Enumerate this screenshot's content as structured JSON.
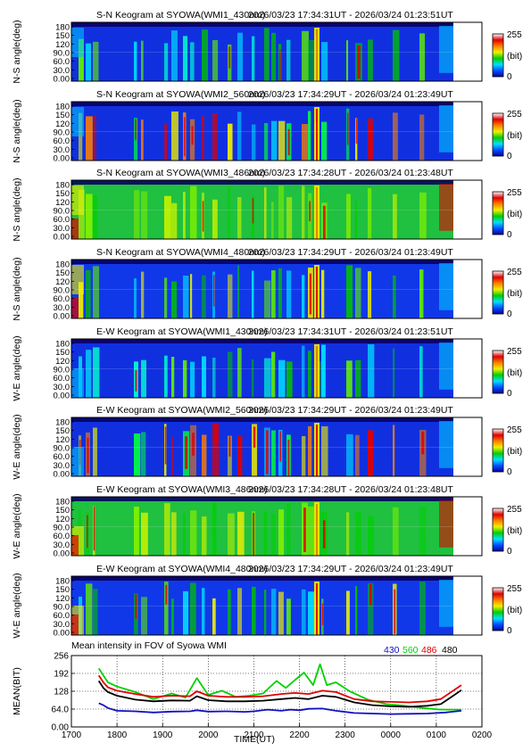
{
  "colorbar": {
    "max_label": "255",
    "unit_label": "(bit)",
    "min_label": "0",
    "stops": [
      "#0a00a0",
      "#0050ff",
      "#00e0ff",
      "#00d000",
      "#f0f000",
      "#ff8000",
      "#e00000",
      "#ffffff"
    ]
  },
  "keograms": [
    {
      "title": "S-N Keogram at SYOWA(WMI1_430nm)",
      "time": "2026/03/23 17:34:31UT - 2026/03/24 01:23:51UT",
      "ylabel": "N-S angle(deg)",
      "yticks": [
        "180",
        "150",
        "120",
        "90.0",
        "60.0",
        "30.0",
        "0.00"
      ],
      "style": "weak"
    },
    {
      "title": "S-N Keogram at SYOWA(WMI2_560nm)",
      "time": "2026/03/23 17:34:29UT - 2026/03/24 01:23:49UT",
      "ylabel": "N-S angle(deg)",
      "yticks": [
        "180",
        "150",
        "120",
        "90.0",
        "60.0",
        "30.0",
        "0.00"
      ],
      "style": "strong"
    },
    {
      "title": "S-N Keogram at SYOWA(WMI3_486nm)",
      "time": "2026/03/23 17:34:28UT - 2026/03/24 01:23:48UT",
      "ylabel": "N-S angle(deg)",
      "yticks": [
        "180",
        "150",
        "120",
        "90.0",
        "60.0",
        "30.0",
        "0.00"
      ],
      "style": "green"
    },
    {
      "title": "S-N Keogram at SYOWA(WMI4_480nm)",
      "time": "2026/03/23 17:34:29UT - 2026/03/24 01:23:49UT",
      "ylabel": "N-S angle(deg)",
      "yticks": [
        "180",
        "150",
        "120",
        "90.0",
        "60.0",
        "30.0",
        "0.00"
      ],
      "style": "mixed"
    },
    {
      "title": "E-W Keogram at SYOWA(WMI1_430nm)",
      "time": "2026/03/23 17:34:31UT - 2026/03/24 01:23:51UT",
      "ylabel": "W-E angle(deg)",
      "yticks": [
        "180",
        "150",
        "120",
        "90.0",
        "60.0",
        "30.0",
        "0.00"
      ],
      "style": "weak"
    },
    {
      "title": "E-W Keogram at SYOWA(WMI2_560nm)",
      "time": "2026/03/23 17:34:29UT - 2026/03/24 01:23:49UT",
      "ylabel": "W-E angle(deg)",
      "yticks": [
        "180",
        "150",
        "120",
        "90.0",
        "60.0",
        "30.0",
        "0.00"
      ],
      "style": "strong"
    },
    {
      "title": "E-W Keogram at SYOWA(WMI3_486nm)",
      "time": "2026/03/23 17:34:28UT - 2026/03/24 01:23:48UT",
      "ylabel": "W-E angle(deg)",
      "yticks": [
        "180",
        "150",
        "120",
        "90.0",
        "60.0",
        "30.0",
        "0.00"
      ],
      "style": "green"
    },
    {
      "title": "E-W Keogram at SYOWA(WMI4_480nm)",
      "time": "2026/03/23 17:34:29UT - 2026/03/24 01:23:49UT",
      "ylabel": "W-E angle(deg)",
      "yticks": [
        "180",
        "150",
        "120",
        "90.0",
        "60.0",
        "30.0",
        "0.00"
      ],
      "style": "mixed"
    }
  ],
  "chart_data": {
    "type": "line",
    "title": "Mean intensity in FOV of Syowa WMI",
    "xlabel": "TIME(UT)",
    "ylabel": "MEAN(BIT)",
    "x_ticks": [
      "1700",
      "1800",
      "1900",
      "2000",
      "2100",
      "2200",
      "2300",
      "0000",
      "0100",
      "0200"
    ],
    "y_ticks": [
      "256",
      "192",
      "128",
      "64.0",
      "0.00"
    ],
    "xlim_hours": [
      17,
      26
    ],
    "ylim": [
      0,
      256
    ],
    "legend_position": "top-right",
    "series": [
      {
        "name": "430",
        "color": "#1010c0",
        "x": [
          17.6,
          17.7,
          17.8,
          18.0,
          18.4,
          18.8,
          19.2,
          19.6,
          19.75,
          20.0,
          20.4,
          20.8,
          21.0,
          21.3,
          21.6,
          21.8,
          22.0,
          22.2,
          22.5,
          22.8,
          23.2,
          23.6,
          24.0,
          24.4,
          24.8,
          25.2,
          25.55
        ],
        "y": [
          85,
          78,
          68,
          58,
          56,
          52,
          55,
          56,
          60,
          55,
          56,
          54,
          56,
          62,
          58,
          62,
          60,
          65,
          66,
          58,
          50,
          48,
          46,
          47,
          48,
          52,
          58
        ]
      },
      {
        "name": "560",
        "color": "#00d000",
        "x": [
          17.6,
          17.7,
          17.8,
          18.0,
          18.4,
          18.8,
          19.2,
          19.5,
          19.75,
          20.0,
          20.3,
          20.6,
          20.9,
          21.2,
          21.5,
          21.7,
          21.9,
          22.1,
          22.3,
          22.45,
          22.6,
          22.8,
          23.1,
          23.5,
          23.9,
          24.3,
          24.7,
          25.1,
          25.55
        ],
        "y": [
          210,
          185,
          160,
          145,
          125,
          100,
          120,
          105,
          175,
          115,
          130,
          108,
          112,
          120,
          165,
          140,
          168,
          195,
          150,
          225,
          150,
          160,
          128,
          98,
          82,
          76,
          68,
          62,
          62
        ]
      },
      {
        "name": "486",
        "color": "#e00000",
        "x": [
          17.6,
          17.7,
          17.8,
          18.0,
          18.4,
          18.8,
          19.2,
          19.6,
          19.75,
          20.0,
          20.4,
          20.8,
          21.2,
          21.6,
          21.9,
          22.2,
          22.5,
          22.8,
          23.2,
          23.6,
          24.0,
          24.4,
          24.8,
          25.1,
          25.55
        ],
        "y": [
          185,
          160,
          142,
          130,
          118,
          108,
          112,
          110,
          128,
          112,
          108,
          108,
          110,
          118,
          122,
          118,
          130,
          125,
          100,
          92,
          90,
          88,
          92,
          100,
          150
        ]
      },
      {
        "name": "480",
        "color": "#000000",
        "x": [
          17.6,
          17.7,
          17.8,
          18.0,
          18.4,
          18.8,
          19.2,
          19.6,
          19.75,
          20.0,
          20.4,
          20.8,
          21.2,
          21.6,
          21.9,
          22.2,
          22.5,
          22.8,
          23.2,
          23.6,
          24.0,
          24.4,
          24.8,
          25.1,
          25.55
        ],
        "y": [
          165,
          140,
          125,
          112,
          98,
          92,
          95,
          94,
          110,
          96,
          92,
          92,
          94,
          100,
          104,
          100,
          112,
          108,
          88,
          78,
          74,
          72,
          76,
          82,
          132
        ]
      }
    ]
  }
}
